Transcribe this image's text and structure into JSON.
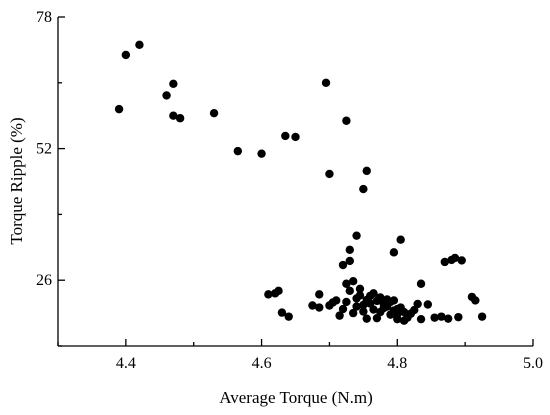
{
  "chart_data": {
    "type": "scatter",
    "title": "",
    "xlabel": "Average Torque (N.m)",
    "ylabel": "Torque Ripple (%)",
    "xlim": [
      4.3,
      5.0
    ],
    "ylim": [
      13,
      78
    ],
    "x_major_ticks": [
      4.4,
      4.6,
      4.8,
      5.0
    ],
    "x_tick_labels": [
      "4.4",
      "4.6",
      "4.8",
      "5.0"
    ],
    "x_minor_ticks": [
      4.3,
      4.5,
      4.7,
      4.9
    ],
    "y_major_ticks": [
      26,
      52,
      78
    ],
    "y_tick_labels": [
      "26",
      "52",
      "78"
    ],
    "y_minor_ticks": [
      13,
      39,
      65
    ],
    "grid": false,
    "legend": "none",
    "marker_color": "#000000",
    "points": [
      [
        4.39,
        59.8
      ],
      [
        4.4,
        70.5
      ],
      [
        4.42,
        72.5
      ],
      [
        4.46,
        62.5
      ],
      [
        4.47,
        64.8
      ],
      [
        4.47,
        58.5
      ],
      [
        4.48,
        58.0
      ],
      [
        4.53,
        59.0
      ],
      [
        4.565,
        51.5
      ],
      [
        4.6,
        51.0
      ],
      [
        4.635,
        54.5
      ],
      [
        4.65,
        54.3
      ],
      [
        4.695,
        65.0
      ],
      [
        4.725,
        57.5
      ],
      [
        4.7,
        47.0
      ],
      [
        4.755,
        47.6
      ],
      [
        4.75,
        44.0
      ],
      [
        4.74,
        34.8
      ],
      [
        4.73,
        32.0
      ],
      [
        4.73,
        29.8
      ],
      [
        4.72,
        29.0
      ],
      [
        4.795,
        31.5
      ],
      [
        4.805,
        34.0
      ],
      [
        4.87,
        29.6
      ],
      [
        4.88,
        30.0
      ],
      [
        4.885,
        30.4
      ],
      [
        4.895,
        29.9
      ],
      [
        4.835,
        25.3
      ],
      [
        4.91,
        22.7
      ],
      [
        4.915,
        22.0
      ],
      [
        4.925,
        18.8
      ],
      [
        4.61,
        23.2
      ],
      [
        4.62,
        23.4
      ],
      [
        4.625,
        23.9
      ],
      [
        4.63,
        19.6
      ],
      [
        4.64,
        18.8
      ],
      [
        4.675,
        21.0
      ],
      [
        4.685,
        20.6
      ],
      [
        4.685,
        23.2
      ],
      [
        4.7,
        21.0
      ],
      [
        4.705,
        21.6
      ],
      [
        4.71,
        22.0
      ],
      [
        4.715,
        19.0
      ],
      [
        4.72,
        20.3
      ],
      [
        4.725,
        21.7
      ],
      [
        4.725,
        25.3
      ],
      [
        4.73,
        23.9
      ],
      [
        4.735,
        19.5
      ],
      [
        4.74,
        22.4
      ],
      [
        4.74,
        20.8
      ],
      [
        4.745,
        23.0
      ],
      [
        4.75,
        21.1
      ],
      [
        4.75,
        19.8
      ],
      [
        4.755,
        18.4
      ],
      [
        4.755,
        22.1
      ],
      [
        4.76,
        21.4
      ],
      [
        4.765,
        20.2
      ],
      [
        4.765,
        23.4
      ],
      [
        4.77,
        21.9
      ],
      [
        4.77,
        18.5
      ],
      [
        4.775,
        19.7
      ],
      [
        4.78,
        21.3
      ],
      [
        4.78,
        20.5
      ],
      [
        4.785,
        22.2
      ],
      [
        4.79,
        19.2
      ],
      [
        4.79,
        21.7
      ],
      [
        4.795,
        20.0
      ],
      [
        4.8,
        19.2
      ],
      [
        4.8,
        18.3
      ],
      [
        4.805,
        20.6
      ],
      [
        4.81,
        18.0
      ],
      [
        4.81,
        19.7
      ],
      [
        4.815,
        18.6
      ],
      [
        4.82,
        19.4
      ],
      [
        4.825,
        20.1
      ],
      [
        4.83,
        21.3
      ],
      [
        4.835,
        18.3
      ],
      [
        4.845,
        21.2
      ],
      [
        4.855,
        18.6
      ],
      [
        4.865,
        18.8
      ],
      [
        4.875,
        18.4
      ],
      [
        4.89,
        18.7
      ],
      [
        4.745,
        24.3
      ],
      [
        4.735,
        25.8
      ],
      [
        4.76,
        22.9
      ],
      [
        4.775,
        22.6
      ],
      [
        4.785,
        20.8
      ],
      [
        4.795,
        22.0
      ],
      [
        4.8,
        20.3
      ],
      [
        4.815,
        19.0
      ]
    ]
  }
}
